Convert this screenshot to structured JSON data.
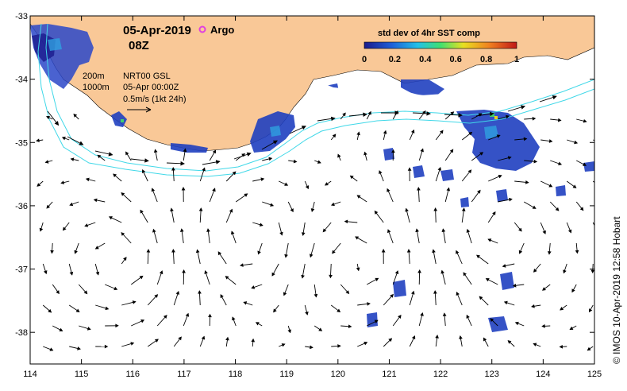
{
  "header": {
    "date": "05-Apr-2019",
    "time": "08Z",
    "argo_label": "Argo"
  },
  "legend": {
    "contour_200": "200m",
    "contour_1000": "1000m",
    "altimetry": "NRT00 GSL",
    "altimetry_date": "05-Apr 00:00Z",
    "vector_scale": "0.5m/s (1kt 24h)"
  },
  "colorbar": {
    "title": "std dev of 4hr SST comp",
    "ticks": [
      "0",
      "0.2",
      "0.4",
      "0.6",
      "0.8",
      "1"
    ],
    "range": [
      0,
      1
    ]
  },
  "axes": {
    "x_ticks": [
      "114",
      "115",
      "116",
      "117",
      "118",
      "119",
      "120",
      "121",
      "122",
      "123",
      "124",
      "125"
    ],
    "y_ticks": [
      "-33",
      "-34",
      "-35",
      "-36",
      "-37",
      "-38"
    ],
    "lon_range": [
      114,
      125
    ],
    "lat_range": [
      -38.5,
      -33
    ]
  },
  "credit": "© IMOS 10-Apr-2019 12:58 Hobart",
  "colors": {
    "land": "#f9c897",
    "contour": "#40d8e8",
    "argo": "#e040e0"
  }
}
